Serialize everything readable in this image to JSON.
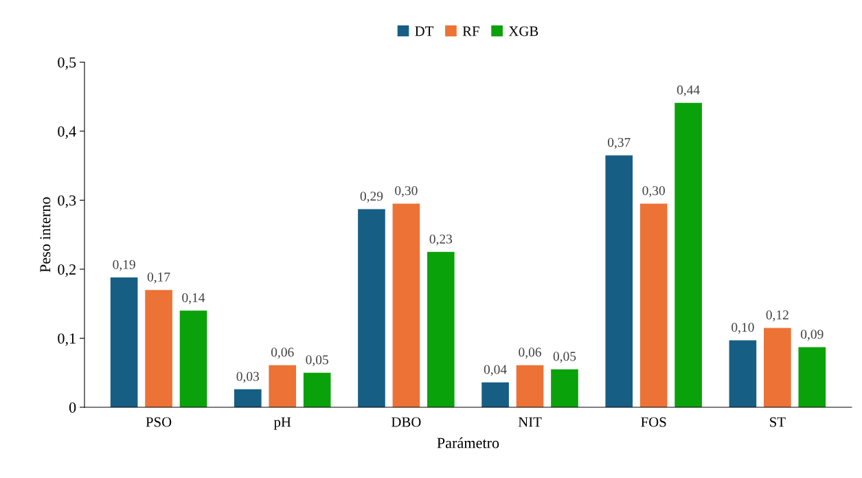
{
  "chart_data": {
    "type": "bar",
    "xlabel": "Parámetro",
    "ylabel": "Peso interno",
    "categories": [
      "PSO",
      "pH",
      "DBO",
      "NIT",
      "FOS",
      "ST"
    ],
    "series": [
      {
        "name": "DT",
        "color": "#175e84",
        "values": [
          0.188,
          0.026,
          0.287,
          0.036,
          0.365,
          0.097
        ],
        "value_labels": [
          "0,19",
          "0,03",
          "0,29",
          "0,04",
          "0,37",
          "0,10"
        ]
      },
      {
        "name": "RF",
        "color": "#ed7236",
        "values": [
          0.17,
          0.061,
          0.295,
          0.061,
          0.295,
          0.115
        ],
        "value_labels": [
          "0,17",
          "0,06",
          "0,30",
          "0,06",
          "0,30",
          "0,12"
        ]
      },
      {
        "name": "XGB",
        "color": "#0aa20a",
        "values": [
          0.14,
          0.05,
          0.225,
          0.055,
          0.441,
          0.087
        ],
        "value_labels": [
          "0,14",
          "0,05",
          "0,23",
          "0,05",
          "0,44",
          "0,09"
        ]
      }
    ],
    "ylim": [
      0,
      0.5
    ],
    "yticks": [
      0,
      {
        "value": 0.1,
        "label": "0,1"
      },
      {
        "value": 0.2,
        "label": "0,2"
      },
      {
        "value": 0.3,
        "label": "0,3"
      },
      {
        "value": 0.4,
        "label": "0,4"
      },
      {
        "value": 0.5,
        "label": "0,5"
      }
    ],
    "grid": false,
    "legend": "top"
  }
}
